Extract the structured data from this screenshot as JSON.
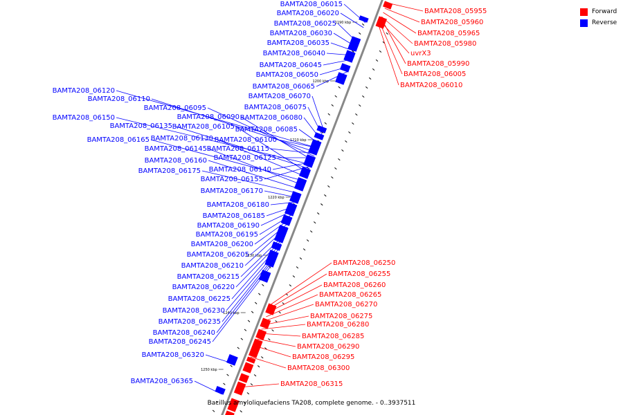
{
  "caption": "Bacillus amyloliquefaciens TA208, complete genome. - 0..3937511",
  "legend": {
    "forward": {
      "label": "Forward",
      "color": "#ff0000"
    },
    "reverse": {
      "label": "Reverse",
      "color": "#0000ff"
    }
  },
  "colors": {
    "forward": "#ff0000",
    "reverse": "#0000ff",
    "backbone": "#888888"
  },
  "tick_labels": [
    "1190 kbp",
    "1200 kbp",
    "1210 kbp",
    "1220 kbp",
    "1230 kbp",
    "1240 kbp",
    "1250 kbp"
  ],
  "forward_genes": [
    "BAMTA208_05955",
    "BAMTA208_05960",
    "BAMTA208_05965",
    "BAMTA208_05980",
    "uvrX3",
    "BAMTA208_05990",
    "BAMTA208_06005",
    "BAMTA208_06010",
    "BAMTA208_06250",
    "BAMTA208_06255",
    "BAMTA208_06260",
    "BAMTA208_06265",
    "BAMTA208_06270",
    "BAMTA208_06275",
    "BAMTA208_06280",
    "BAMTA208_06285",
    "BAMTA208_06290",
    "BAMTA208_06295",
    "BAMTA208_06300",
    "BAMTA208_06315"
  ],
  "reverse_genes": [
    "BAMTA208_06015",
    "BAMTA208_06020",
    "BAMTA208_06025",
    "BAMTA208_06030",
    "BAMTA208_06035",
    "BAMTA208_06040",
    "BAMTA208_06045",
    "BAMTA208_06050",
    "BAMTA208_06065",
    "BAMTA208_06120",
    "BAMTA208_06110",
    "BAMTA208_06070",
    "BAMTA208_06075",
    "BAMTA208_06095",
    "BAMTA208_06090",
    "BAMTA208_06080",
    "BAMTA208_06150",
    "BAMTA208_06135",
    "BAMTA208_06105",
    "BAMTA208_06085",
    "BAMTA208_06130",
    "BAMTA208_06100",
    "BAMTA208_06165",
    "BAMTA208_06145",
    "BAMTA208_06115",
    "BAMTA208_06125",
    "BAMTA208_06160",
    "BAMTA208_06140",
    "BAMTA208_06175",
    "BAMTA208_06155",
    "BAMTA208_06170",
    "BAMTA208_06180",
    "BAMTA208_06185",
    "BAMTA208_06190",
    "BAMTA208_06195",
    "BAMTA208_06200",
    "BAMTA208_06205",
    "BAMTA208_06210",
    "BAMTA208_06215",
    "BAMTA208_06220",
    "BAMTA208_06225",
    "BAMTA208_06230",
    "BAMTA208_06235",
    "BAMTA208_06240",
    "BAMTA208_06245",
    "BAMTA208_06320",
    "BAMTA208_06365"
  ]
}
